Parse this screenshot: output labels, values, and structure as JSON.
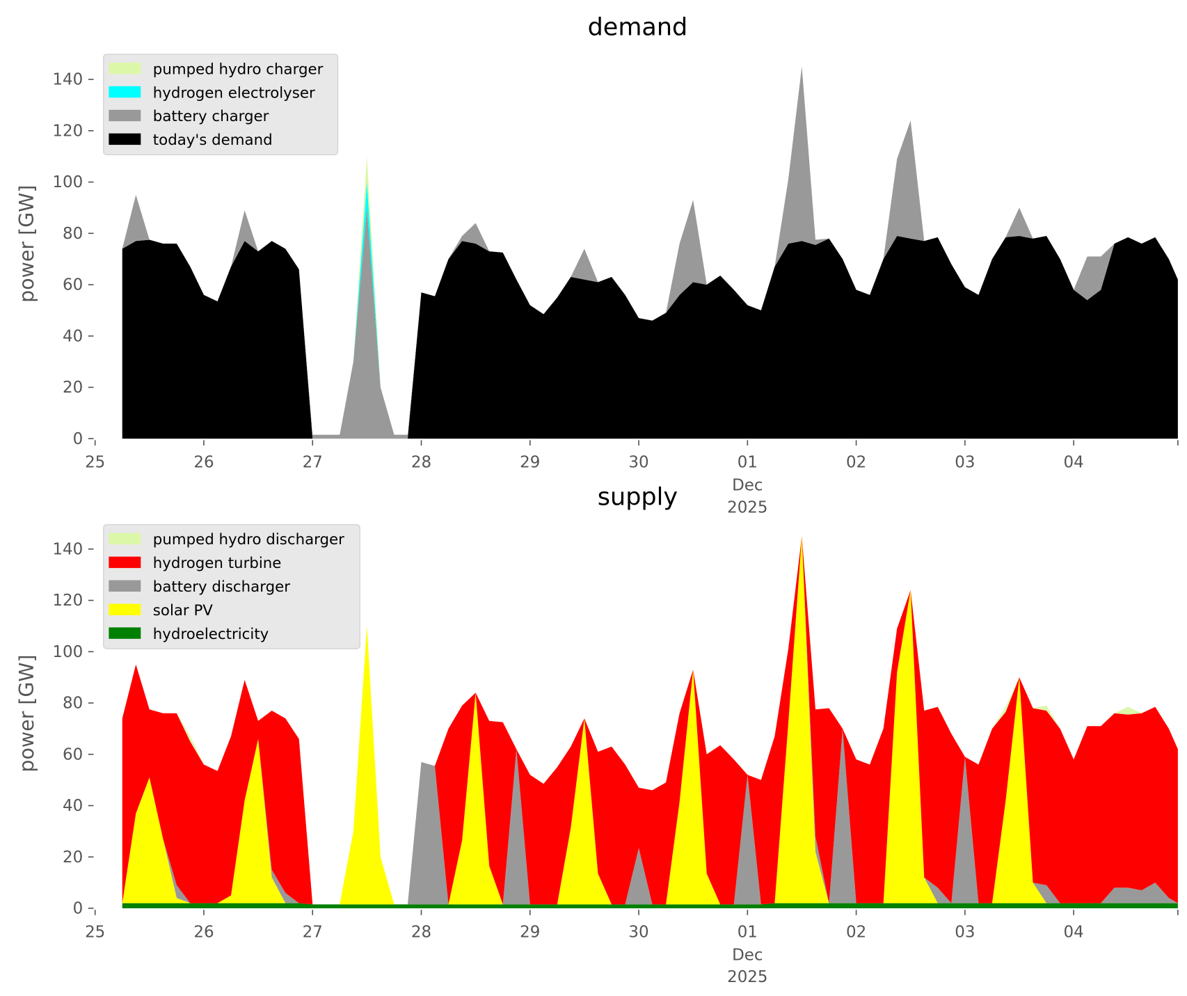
{
  "chart_data": [
    {
      "type": "area",
      "stacked": true,
      "title": "demand",
      "ylabel": "power [GW]",
      "xlabel": "",
      "x_unit": "hours since 25 Nov 2025 00:00",
      "xlim": [
        0,
        239
      ],
      "ylim": [
        0,
        150
      ],
      "grid": false,
      "legend_position": "top-left",
      "yticks": [
        0,
        20,
        40,
        60,
        80,
        100,
        120,
        140
      ],
      "ytick_labels": [
        "0",
        "20",
        "40",
        "60",
        "80",
        "100",
        "120",
        "140"
      ],
      "xticks": [
        0,
        24,
        48,
        72,
        96,
        120,
        144,
        168,
        192,
        216
      ],
      "xtick_labels": [
        "25",
        "26",
        "27",
        "28",
        "29",
        "30",
        "01",
        "02",
        "03",
        "04"
      ],
      "xtick_sublabel": {
        "at": "01",
        "month": "Dec",
        "year": "2025"
      },
      "x": [
        6,
        9,
        12,
        15,
        18,
        21,
        24,
        27,
        30,
        33,
        36,
        39,
        42,
        45,
        48,
        51,
        54,
        57,
        60,
        63,
        66,
        69,
        72,
        75,
        78,
        81,
        84,
        87,
        90,
        93,
        96,
        99,
        102,
        105,
        108,
        111,
        114,
        117,
        120,
        123,
        126,
        129,
        132,
        135,
        138,
        141,
        144,
        147,
        150,
        153,
        156,
        159,
        162,
        165,
        168,
        171,
        174,
        177,
        180,
        183,
        186,
        189,
        192,
        195,
        198,
        201,
        204,
        207,
        210,
        213,
        216,
        219,
        222,
        225,
        228,
        231,
        234,
        237,
        239
      ],
      "series": [
        {
          "name": "today's demand",
          "color": "#000000",
          "values": [
            74,
            77,
            77.5,
            76,
            76,
            67,
            56,
            53.5,
            67,
            77,
            73,
            77,
            74,
            66,
            0,
            0,
            0,
            0,
            0,
            0,
            0,
            0,
            57,
            55.5,
            70,
            77,
            76,
            73,
            72.5,
            62,
            52,
            48.5,
            55,
            63,
            62,
            61,
            63,
            56,
            47,
            46,
            49,
            56,
            61,
            60,
            63.5,
            58,
            52,
            50,
            67,
            76,
            77,
            75.5,
            78,
            70,
            58,
            56,
            70,
            79,
            78,
            77,
            78.5,
            68,
            59,
            56,
            70,
            78.5,
            79,
            78,
            79,
            70,
            58,
            54,
            58,
            76,
            78.5,
            76,
            78.5,
            70,
            62
          ]
        },
        {
          "name": "battery charger",
          "color": "#999999",
          "values": [
            0,
            18,
            0,
            0,
            0,
            0,
            0,
            0,
            0,
            12,
            0,
            0,
            0,
            0,
            1.5,
            1.5,
            1.5,
            30,
            90,
            20,
            1.5,
            1.5,
            0,
            0,
            0,
            2,
            8,
            0,
            0,
            0,
            0,
            0,
            0,
            0,
            12,
            0,
            0,
            0,
            0,
            0,
            0,
            20,
            32,
            0,
            0,
            0,
            0,
            0,
            0,
            25,
            68,
            2,
            0,
            0,
            0,
            0,
            0,
            30,
            46,
            0,
            0,
            0,
            0,
            0,
            0,
            0,
            11,
            0,
            0,
            0,
            0,
            17,
            13,
            0,
            0,
            0,
            0,
            0,
            0
          ]
        },
        {
          "name": "hydrogen electrolyser",
          "color": "#00ffff",
          "values": [
            0,
            0,
            0,
            0,
            0,
            0,
            0,
            0,
            0,
            0,
            0,
            0,
            0,
            0,
            0,
            0,
            0,
            0,
            10,
            0,
            0,
            0,
            0,
            0,
            0,
            0,
            0,
            0,
            0,
            0,
            0,
            0,
            0,
            0,
            0,
            0,
            0,
            0,
            0,
            0,
            0,
            0,
            0,
            0,
            0,
            0,
            0,
            0,
            0,
            0,
            0,
            0,
            0,
            0,
            0,
            0,
            0,
            0,
            0,
            0,
            0,
            0,
            0,
            0,
            0,
            0,
            0,
            0,
            0,
            0,
            0,
            0,
            0,
            0,
            0,
            0,
            0,
            0,
            0
          ]
        },
        {
          "name": "pumped hydro charger",
          "color": "#dcf7a8",
          "values": [
            0,
            0,
            0,
            0,
            0,
            0,
            0,
            0,
            0,
            0,
            0,
            0,
            0,
            0,
            0,
            0,
            0,
            0,
            10,
            0,
            0,
            0,
            0,
            0,
            0,
            0,
            0,
            0,
            0,
            0,
            0,
            0,
            0,
            0,
            0,
            0,
            0,
            0,
            0,
            0,
            0,
            0,
            0,
            0,
            0,
            0,
            0,
            0,
            0,
            0,
            0,
            0,
            0,
            0,
            0,
            0,
            0,
            0,
            0,
            0,
            0,
            0,
            0,
            0,
            0,
            0,
            0,
            0,
            0,
            0,
            0,
            0,
            0,
            0,
            0,
            0,
            0,
            0,
            0
          ]
        }
      ],
      "legend": [
        "pumped hydro charger",
        "hydrogen electrolyser",
        "battery charger",
        "today's demand"
      ]
    },
    {
      "type": "area",
      "stacked": true,
      "title": "supply",
      "ylabel": "power [GW]",
      "xlabel": "",
      "x_unit": "hours since 25 Nov 2025 00:00",
      "xlim": [
        0,
        239
      ],
      "ylim": [
        0,
        150
      ],
      "grid": false,
      "legend_position": "top-left",
      "yticks": [
        0,
        20,
        40,
        60,
        80,
        100,
        120,
        140
      ],
      "ytick_labels": [
        "0",
        "20",
        "40",
        "60",
        "80",
        "100",
        "120",
        "140"
      ],
      "xticks": [
        0,
        24,
        48,
        72,
        96,
        120,
        144,
        168,
        192,
        216
      ],
      "xtick_labels": [
        "25",
        "26",
        "27",
        "28",
        "29",
        "30",
        "01",
        "02",
        "03",
        "04"
      ],
      "xtick_sublabel": {
        "at": "01",
        "month": "Dec",
        "year": "2025"
      },
      "x": [
        6,
        9,
        12,
        15,
        18,
        21,
        24,
        27,
        30,
        33,
        36,
        39,
        42,
        45,
        48,
        51,
        54,
        57,
        60,
        63,
        66,
        69,
        72,
        75,
        78,
        81,
        84,
        87,
        90,
        93,
        96,
        99,
        102,
        105,
        108,
        111,
        114,
        117,
        120,
        123,
        126,
        129,
        132,
        135,
        138,
        141,
        144,
        147,
        150,
        153,
        156,
        159,
        162,
        165,
        168,
        171,
        174,
        177,
        180,
        183,
        186,
        189,
        192,
        195,
        198,
        201,
        204,
        207,
        210,
        213,
        216,
        219,
        222,
        225,
        228,
        231,
        234,
        237,
        239
      ],
      "series": [
        {
          "name": "hydroelectricity",
          "color": "#008000",
          "values": [
            2,
            2,
            2,
            2,
            2,
            2,
            2,
            2,
            2,
            2,
            2,
            2,
            2,
            2,
            1.5,
            1.5,
            1.5,
            1.5,
            1.5,
            1.5,
            1.5,
            1.5,
            1.5,
            1.5,
            1.5,
            1.5,
            1.5,
            1.5,
            1.5,
            1.5,
            1.5,
            1.5,
            1.5,
            1.5,
            1.5,
            1.5,
            1.5,
            1.5,
            1.5,
            1.5,
            1.5,
            1.5,
            1.5,
            1.5,
            1.5,
            1.5,
            1.5,
            1.5,
            2,
            2,
            2,
            2,
            2,
            2,
            2,
            2,
            2,
            2,
            2,
            2,
            2,
            2,
            2,
            2,
            2,
            2,
            2,
            2,
            2,
            2,
            2,
            2,
            2,
            2,
            2,
            2,
            2,
            2,
            2
          ]
        },
        {
          "name": "solar PV",
          "color": "#ffff00",
          "values": [
            0,
            35,
            49,
            25,
            2,
            0,
            0,
            0,
            3,
            40,
            64,
            10,
            0,
            0,
            0,
            0,
            0,
            28.5,
            108.5,
            18.5,
            0,
            0,
            0,
            0,
            0,
            25,
            82.5,
            15,
            0,
            0,
            0,
            0,
            0,
            30,
            72.5,
            12,
            0,
            0,
            0,
            0,
            0,
            40,
            91.5,
            12,
            0,
            0,
            0,
            0,
            0,
            70,
            143,
            20,
            0,
            0,
            0,
            0,
            0,
            90,
            122,
            10,
            0,
            0,
            0,
            0,
            0,
            40,
            88,
            8,
            0,
            0,
            0,
            0,
            0,
            0,
            0,
            0,
            0,
            0,
            0
          ]
        },
        {
          "name": "battery discharger",
          "color": "#999999",
          "values": [
            0,
            0,
            0,
            0,
            5,
            0,
            0,
            0,
            0,
            0,
            0,
            3,
            4,
            0,
            0,
            0,
            0,
            0,
            0,
            0,
            0,
            0,
            55.5,
            54,
            0,
            0,
            0,
            0,
            0,
            60.5,
            0,
            0,
            0,
            0,
            0,
            0,
            0,
            0,
            22,
            0,
            0,
            0,
            0,
            0,
            0,
            0,
            50.5,
            0,
            0,
            0,
            0,
            6,
            0,
            68,
            0,
            0,
            0,
            0,
            0,
            0,
            6,
            0,
            57,
            0,
            0,
            0,
            0,
            0,
            7,
            0,
            0,
            0,
            0,
            6,
            6,
            5,
            8,
            2,
            0
          ]
        },
        {
          "name": "hydrogen turbine",
          "color": "#ff0000",
          "values": [
            72,
            58,
            26.5,
            49,
            67,
            63,
            54,
            51.5,
            62,
            47,
            7,
            62,
            68,
            64,
            0,
            0,
            0,
            0,
            0,
            0,
            0,
            0,
            0,
            0,
            68.5,
            52.5,
            0,
            56.5,
            71,
            0,
            50.5,
            47,
            53.5,
            31.5,
            0,
            47.5,
            61.5,
            54.5,
            23.5,
            44.5,
            47.5,
            34.5,
            0,
            46.5,
            62,
            56.5,
            0,
            48.5,
            65,
            29,
            0,
            49.5,
            76,
            0,
            56,
            54,
            68,
            17,
            0,
            65,
            70.5,
            66,
            0,
            54,
            68,
            34.5,
            0,
            68,
            68,
            68,
            56,
            69,
            69,
            68,
            67.5,
            69,
            68.5,
            66,
            60
          ]
        },
        {
          "name": "pumped hydro discharger",
          "color": "#dcf7a8",
          "values": [
            0,
            0,
            0,
            0,
            0,
            2,
            0,
            0,
            0,
            0,
            0,
            0,
            0,
            0,
            0,
            0,
            0,
            0,
            0,
            0,
            0,
            0,
            0,
            0,
            0,
            0,
            0,
            0,
            0,
            0,
            0,
            0,
            0,
            0,
            0,
            0,
            0,
            0,
            0,
            0,
            0,
            0,
            0,
            0,
            0,
            0,
            0,
            0,
            0,
            0,
            0,
            0,
            0,
            0,
            0,
            0,
            0,
            0,
            0,
            0,
            0,
            0,
            0,
            0,
            0,
            2,
            0,
            0,
            2,
            0,
            0,
            0,
            0,
            0,
            3,
            0,
            0,
            0,
            0
          ]
        }
      ],
      "legend": [
        "pumped hydro discharger",
        "hydrogen turbine",
        "battery discharger",
        "solar PV",
        "hydroelectricity"
      ]
    }
  ]
}
